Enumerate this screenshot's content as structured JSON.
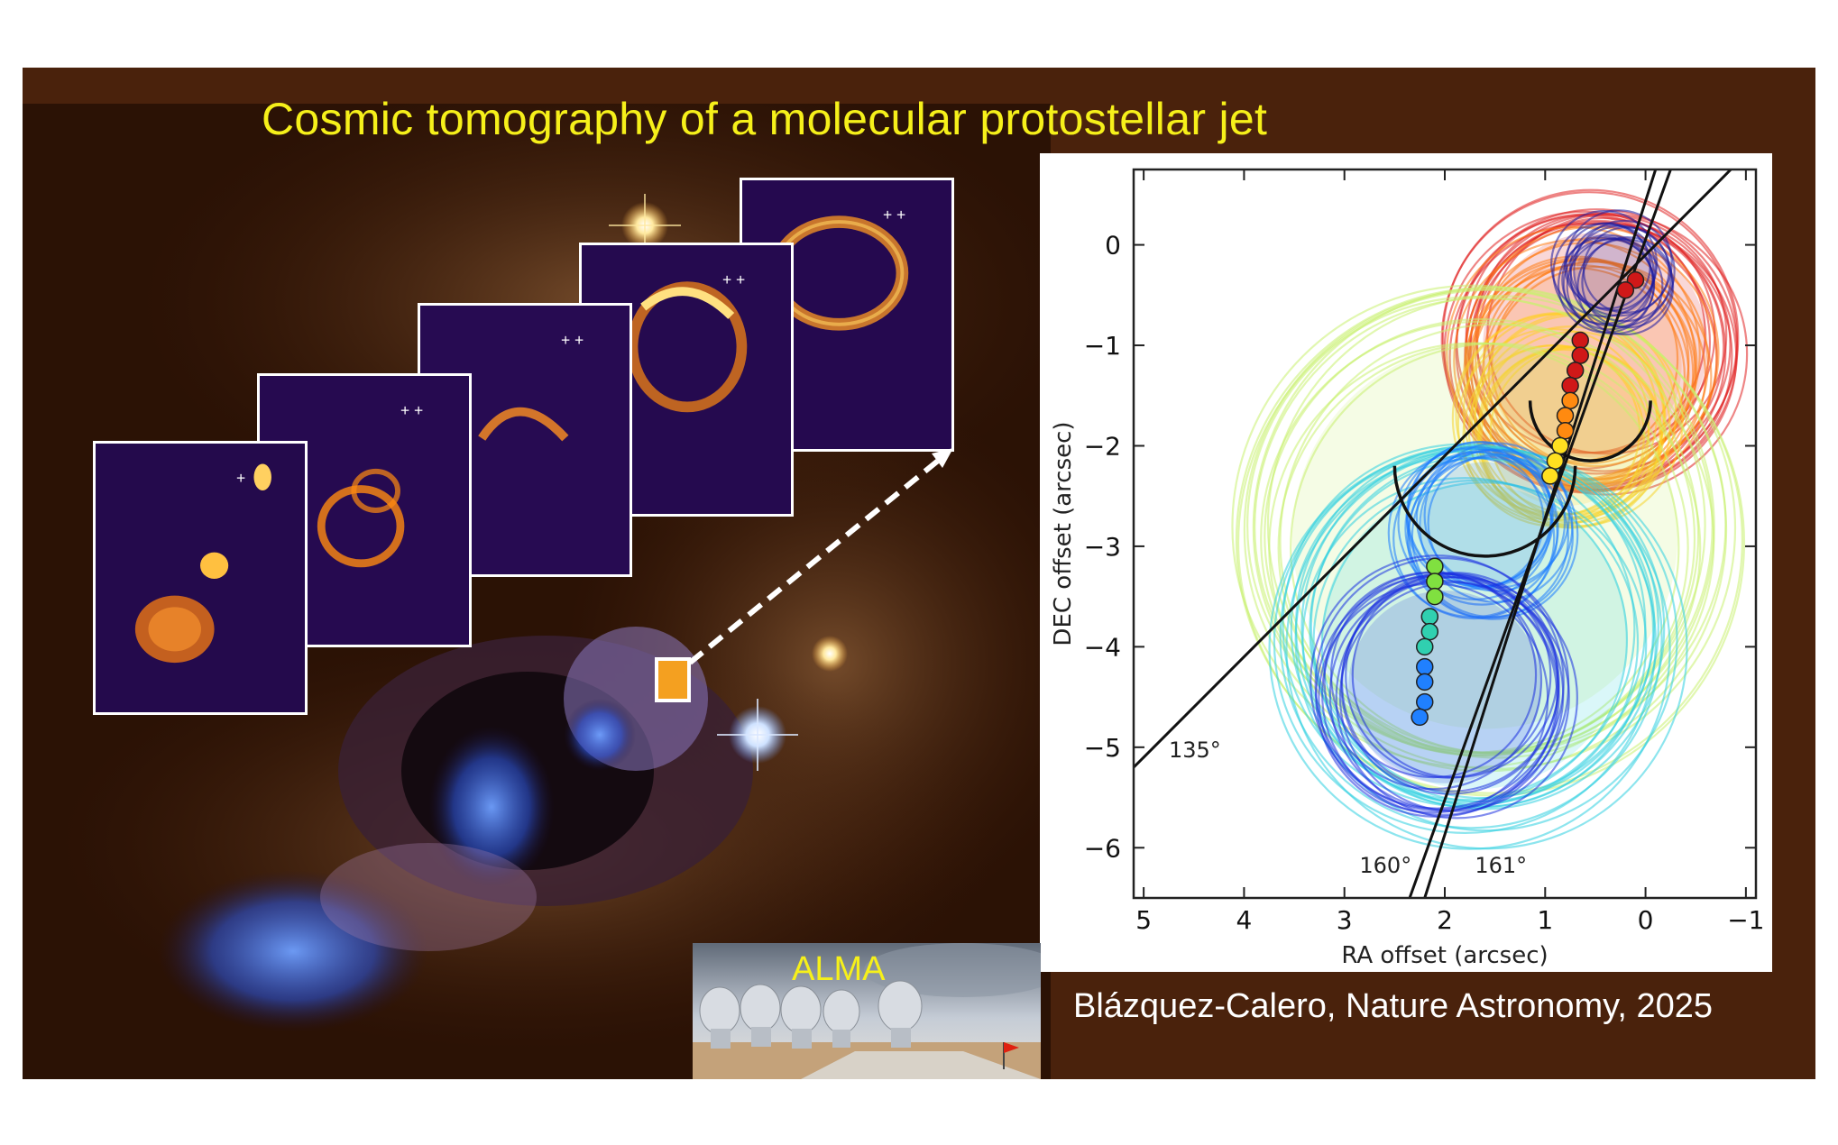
{
  "slide": {
    "title": "Cosmic tomography of a molecular protostellar  jet",
    "citation": "Blázquez-Calero, Nature Astronomy, 2025",
    "photo_label": "ALMA"
  },
  "colors": {
    "background": "#4a220c",
    "title": "#f6f01a",
    "nebula_blue": "#4f7cff",
    "panel_purple": "#2a0a55",
    "emission_orange": "#ffa020"
  },
  "images": {
    "nebula": "nebula-image",
    "channel_maps": [
      "channel-map-1",
      "channel-map-2",
      "channel-map-3",
      "channel-map-4",
      "channel-map-5"
    ],
    "alma_photo": "alma-antennas-photo"
  },
  "chart_data": {
    "type": "scatter",
    "xlabel": "RA offset (arcsec)",
    "ylabel": "DEC offset (arcsec)",
    "xlim": [
      5.1,
      -1.1
    ],
    "ylim": [
      -6.5,
      0.75
    ],
    "x_ticks": [
      5,
      4,
      3,
      2,
      1,
      0,
      -1
    ],
    "y_ticks": [
      0,
      -1,
      -2,
      -3,
      -4,
      -5,
      -6
    ],
    "x_tick_labels": [
      "5",
      "4",
      "3",
      "2",
      "1",
      "0",
      "−1"
    ],
    "y_tick_labels": [
      "0",
      "−1",
      "−2",
      "−3",
      "−4",
      "−5",
      "−6"
    ],
    "annotations": [
      {
        "text": "135°",
        "x": 4.75,
        "y": -5.1
      },
      {
        "text": "160°",
        "x": 2.85,
        "y": -6.25
      },
      {
        "text": "161°",
        "x": 1.7,
        "y": -6.25
      }
    ],
    "position_angle_lines": [
      {
        "label": "135°",
        "from": [
          5.1,
          -5.2
        ],
        "to": [
          -0.85,
          0.75
        ]
      },
      {
        "label": "160°",
        "from": [
          2.35,
          -6.5
        ],
        "to": [
          -0.25,
          0.75
        ]
      },
      {
        "label": "161°",
        "from": [
          2.2,
          -6.5
        ],
        "to": [
          -0.1,
          0.75
        ]
      }
    ],
    "ring_groups": [
      {
        "color": "#e02020",
        "cx": 0.5,
        "cy": -1.0,
        "r": 1.4
      },
      {
        "color": "#ff7a10",
        "cx": 0.6,
        "cy": -1.2,
        "r": 1.2
      },
      {
        "color": "#ffd020",
        "cx": 0.8,
        "cy": -1.8,
        "r": 1.0
      },
      {
        "color": "#c8f070",
        "cx": 1.6,
        "cy": -2.9,
        "r": 2.4
      },
      {
        "color": "#30d0e0",
        "cx": 1.7,
        "cy": -3.9,
        "r": 1.9
      },
      {
        "color": "#1a7aff",
        "cx": 1.6,
        "cy": -2.8,
        "r": 0.8
      },
      {
        "color": "#1b2fe0",
        "cx": 2.0,
        "cy": -4.4,
        "r": 1.2
      },
      {
        "color": "#1a1aa0",
        "cx": 0.3,
        "cy": -0.3,
        "r": 0.5
      }
    ],
    "series": [
      {
        "name": "",
        "color": "#d01818",
        "points": [
          [
            0.1,
            -0.35
          ],
          [
            0.2,
            -0.45
          ],
          [
            0.65,
            -0.95
          ],
          [
            0.65,
            -1.1
          ],
          [
            0.7,
            -1.25
          ],
          [
            0.75,
            -1.4
          ]
        ]
      },
      {
        "name": "",
        "color": "#ff8a10",
        "points": [
          [
            0.75,
            -1.55
          ],
          [
            0.8,
            -1.7
          ],
          [
            0.8,
            -1.85
          ]
        ]
      },
      {
        "name": "",
        "color": "#ffe020",
        "points": [
          [
            0.85,
            -2.0
          ],
          [
            0.9,
            -2.15
          ],
          [
            0.95,
            -2.3
          ]
        ]
      },
      {
        "name": "",
        "color": "#80e040",
        "points": [
          [
            2.1,
            -3.2
          ],
          [
            2.1,
            -3.35
          ],
          [
            2.1,
            -3.5
          ]
        ]
      },
      {
        "name": "",
        "color": "#30d0b0",
        "points": [
          [
            2.15,
            -3.7
          ],
          [
            2.15,
            -3.85
          ],
          [
            2.2,
            -4.0
          ]
        ]
      },
      {
        "name": "",
        "color": "#2080ff",
        "points": [
          [
            2.2,
            -4.2
          ],
          [
            2.2,
            -4.35
          ],
          [
            2.2,
            -4.55
          ],
          [
            2.25,
            -4.7
          ]
        ]
      }
    ]
  }
}
